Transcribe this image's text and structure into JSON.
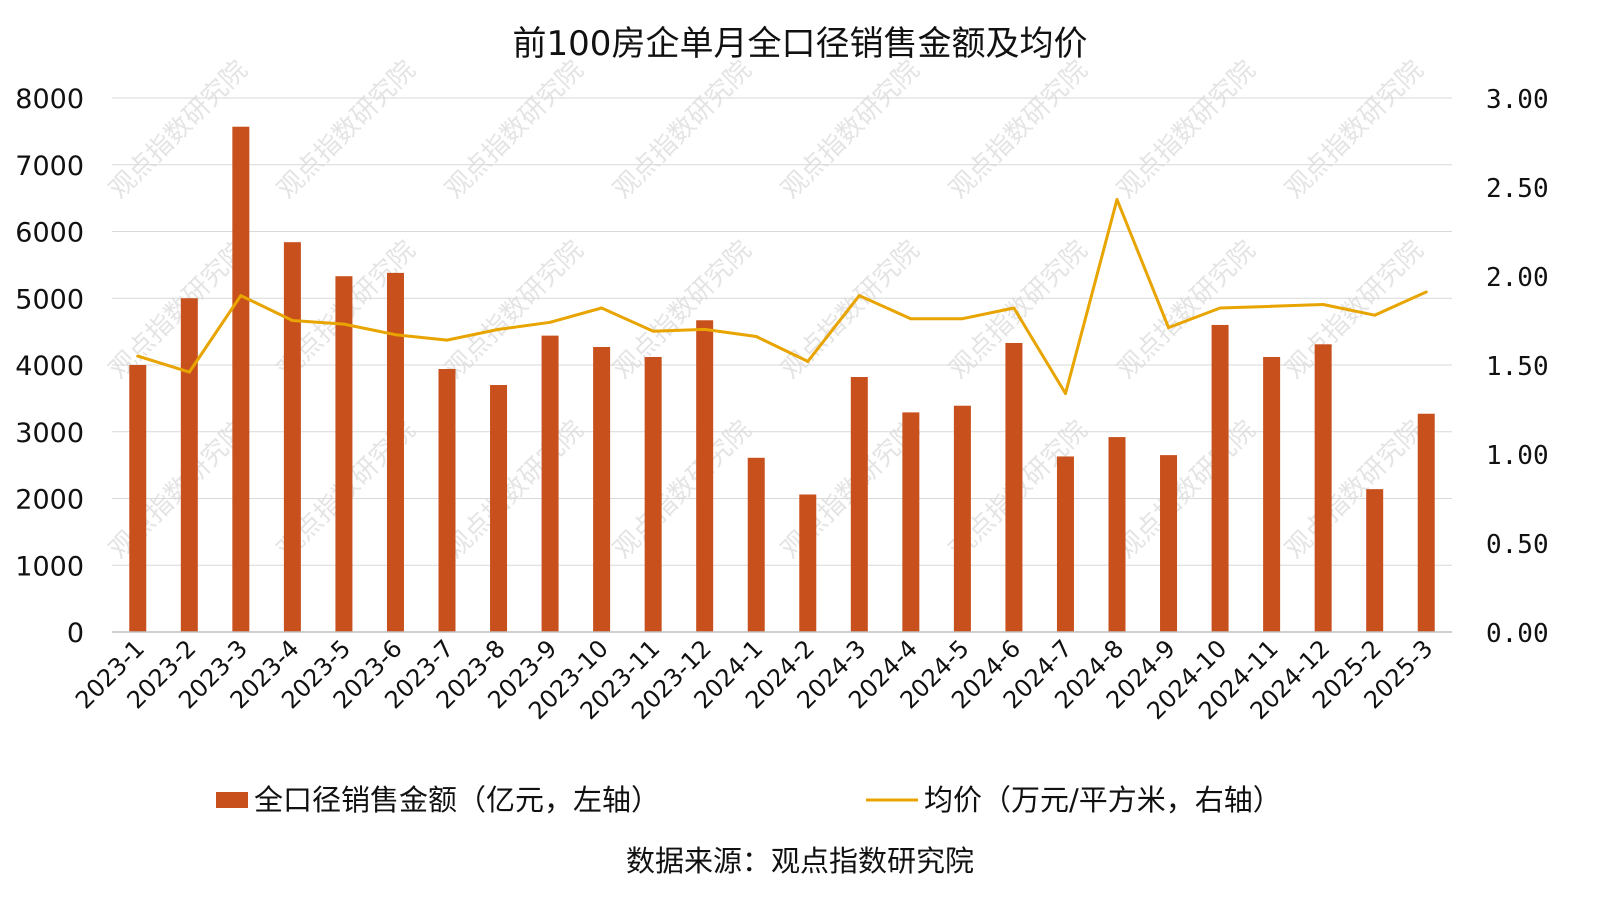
{
  "chart_data": {
    "type": "bar",
    "title": "前100房企单月全口径销售金额及均价",
    "source": "数据来源：观点指数研究院",
    "watermark": "观点指数研究院",
    "categories": [
      "2023-1",
      "2023-2",
      "2023-3",
      "2023-4",
      "2023-5",
      "2023-6",
      "2023-7",
      "2023-8",
      "2023-9",
      "2023-10",
      "2023-11",
      "2023-12",
      "2024-1",
      "2024-2",
      "2024-3",
      "2024-4",
      "2024-5",
      "2024-6",
      "2024-7",
      "2024-8",
      "2024-9",
      "2024-10",
      "2024-11",
      "2024-12",
      "2025-2",
      "2025-3"
    ],
    "series": [
      {
        "name": "全口径销售金额（亿元，左轴）",
        "type": "bar",
        "axis": "left",
        "color": "#c8501c",
        "values": [
          4000,
          5000,
          7570,
          5840,
          5330,
          5380,
          3940,
          3700,
          4440,
          4270,
          4120,
          4670,
          2610,
          2060,
          3820,
          3290,
          3390,
          4330,
          2630,
          2920,
          2650,
          4600,
          4120,
          4310,
          2140,
          3270
        ]
      },
      {
        "name": "均价（万元/平方米，右轴）",
        "type": "line",
        "axis": "right",
        "color": "#e8a400",
        "values": [
          1.55,
          1.46,
          1.89,
          1.75,
          1.73,
          1.67,
          1.64,
          1.7,
          1.74,
          1.82,
          1.69,
          1.7,
          1.66,
          1.52,
          1.89,
          1.76,
          1.76,
          1.82,
          1.34,
          2.43,
          1.71,
          1.82,
          1.83,
          1.84,
          1.78,
          1.91
        ]
      }
    ],
    "y_left": {
      "ylim": [
        0,
        8000
      ],
      "ticks": [
        "0",
        "1000",
        "2000",
        "3000",
        "4000",
        "5000",
        "6000",
        "7000",
        "8000"
      ]
    },
    "y_right": {
      "ylim": [
        0,
        3
      ],
      "ticks": [
        "0.00",
        "0.50",
        "1.00",
        "1.50",
        "2.00",
        "2.50",
        "3.00"
      ]
    },
    "grid": true,
    "legend": "bottom"
  }
}
